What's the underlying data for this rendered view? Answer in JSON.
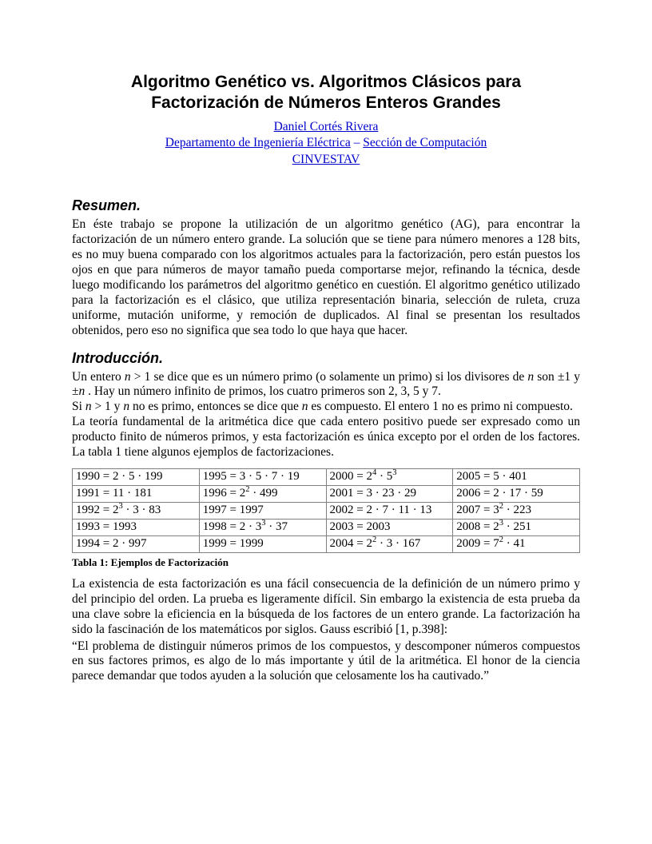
{
  "title_line1": "Algoritmo Genético vs. Algoritmos Clásicos para",
  "title_line2": "Factorización de Números Enteros Grandes",
  "author": "Daniel Cortés Rivera",
  "affil1": "Departamento de Ingeniería Eléctrica",
  "affil2": "Sección de Computación",
  "affil3": "CINVESTAV",
  "sec_resumen": "Resumen.",
  "resumen_body": "En éste trabajo se propone la utilización de un algoritmo genético (AG), para encontrar la factorización de un número entero grande. La solución que se tiene para número menores a 128 bits, es no muy buena comparado con los algoritmos actuales para la factorización, pero están puestos los ojos en que para números de mayor tamaño pueda comportarse mejor, refinando la técnica, desde luego modificando los parámetros del algoritmo genético en cuestión. El algoritmo genético utilizado para la factorización es el clásico, que utiliza representación binaria, selección de ruleta, cruza uniforme, mutación uniforme, y remoción de duplicados. Al final se presentan los resultados obtenidos, pero eso no significa que sea todo lo que haya que hacer.",
  "sec_intro": "Introducción.",
  "intro_p1_a": "Un entero ",
  "intro_p1_n": "n",
  "intro_p1_b": " > 1 se dice que es un número primo (o solamente un primo) si los divisores de ",
  "intro_p1_c": " son ±1 y ±",
  "intro_p1_d": " . Hay un número infinito de primos, los cuatro primeros son 2, 3, 5 y 7.",
  "intro_p2_a": "Si ",
  "intro_p2_b": " > 1 y ",
  "intro_p2_c": " no es primo, entonces se dice que ",
  "intro_p2_d": " es compuesto. El entero 1 no es primo ni compuesto.",
  "intro_p3": "La teoría fundamental de la aritmética dice que cada entero positivo puede ser expresado como un producto finito de números primos, y esta factorización es única excepto por el orden de los factores. La tabla 1 tiene algunos ejemplos de factorizaciones.",
  "table": {
    "rows": [
      [
        "1990 = 2 · 5 · 199",
        "1995 = 3 · 5 · 7 · 19",
        "2000 = 2<sup>4</sup> · 5<sup>3</sup>",
        "2005 = 5 · 401"
      ],
      [
        "1991 = 11 · 181",
        "1996 = 2<sup>2</sup> · 499",
        "2001 = 3 · 23 · 29",
        "2006 = 2 · 17 · 59"
      ],
      [
        "1992 = 2<sup>3</sup> · 3 · 83",
        "1997 = 1997",
        "2002 = 2 · 7 · 11 · 13",
        "2007 = 3<sup>2</sup> · 223"
      ],
      [
        "1993 = 1993",
        "1998 = 2 · 3<sup>3</sup> · 37",
        "2003 = 2003",
        "2008 = 2<sup>3</sup> · 251"
      ],
      [
        "1994 = 2 · 997",
        "1999 = 1999",
        "2004 = 2<sup>2</sup> · 3 · 167",
        "2009 = 7<sup>2</sup> · 41"
      ]
    ]
  },
  "caption": "Tabla 1: Ejemplos de Factorización",
  "para_after1": "La existencia de esta factorización es una fácil consecuencia de la definición de un número primo y del principio del orden. La prueba es ligeramente difícil. Sin embargo la existencia de esta prueba da una clave sobre la eficiencia en la búsqueda de los factores de un entero grande. La factorización ha sido la fascinación de los matemáticos por siglos. Gauss escribió [1, p.398]:",
  "quote": " “El problema de distinguir números primos de los compuestos, y descomponer números compuestos en sus factores primos, es algo de lo más importante y útil de la aritmética. El honor de la ciencia parece demandar que todos ayuden a la solución que celosamente los ha cautivado.”"
}
